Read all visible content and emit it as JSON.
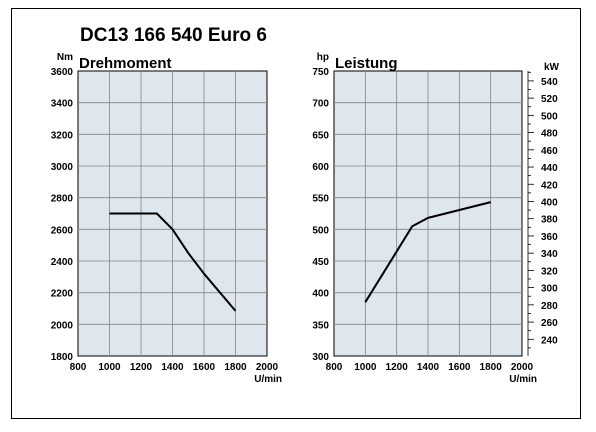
{
  "title": "DC13 166 540 Euro 6",
  "chart_data": [
    {
      "type": "line",
      "title": "Drehmoment",
      "ylabel": "Nm",
      "xlabel": "U/min",
      "xlim": [
        800,
        2000
      ],
      "ylim": [
        1800,
        3600
      ],
      "xticks": [
        800,
        1000,
        1200,
        1400,
        1600,
        1800,
        2000
      ],
      "yticks": [
        1800,
        2000,
        2200,
        2400,
        2600,
        2800,
        3000,
        3200,
        3400,
        3600
      ],
      "grid": true,
      "series": [
        {
          "x": [
            1000,
            1300,
            1400,
            1500,
            1600,
            1800
          ],
          "y": [
            2700,
            2700,
            2600,
            2450,
            2320,
            2085
          ]
        }
      ]
    },
    {
      "type": "line",
      "title": "Leistung",
      "ylabel": "hp",
      "y2label": "kW",
      "xlabel": "U/min",
      "xlim": [
        800,
        2000
      ],
      "ylim": [
        300,
        750
      ],
      "xticks": [
        800,
        1000,
        1200,
        1400,
        1600,
        1800,
        2000
      ],
      "yticks": [
        300,
        350,
        400,
        450,
        500,
        550,
        600,
        650,
        700,
        750
      ],
      "y2ticks": [
        240,
        260,
        280,
        300,
        320,
        340,
        360,
        380,
        400,
        420,
        440,
        460,
        480,
        500,
        520,
        540
      ],
      "y2lim": [
        220.6,
        551.5
      ],
      "grid": true,
      "series": [
        {
          "x": [
            1000,
            1300,
            1400,
            1800
          ],
          "y": [
            385,
            505,
            518,
            543
          ]
        }
      ]
    }
  ]
}
